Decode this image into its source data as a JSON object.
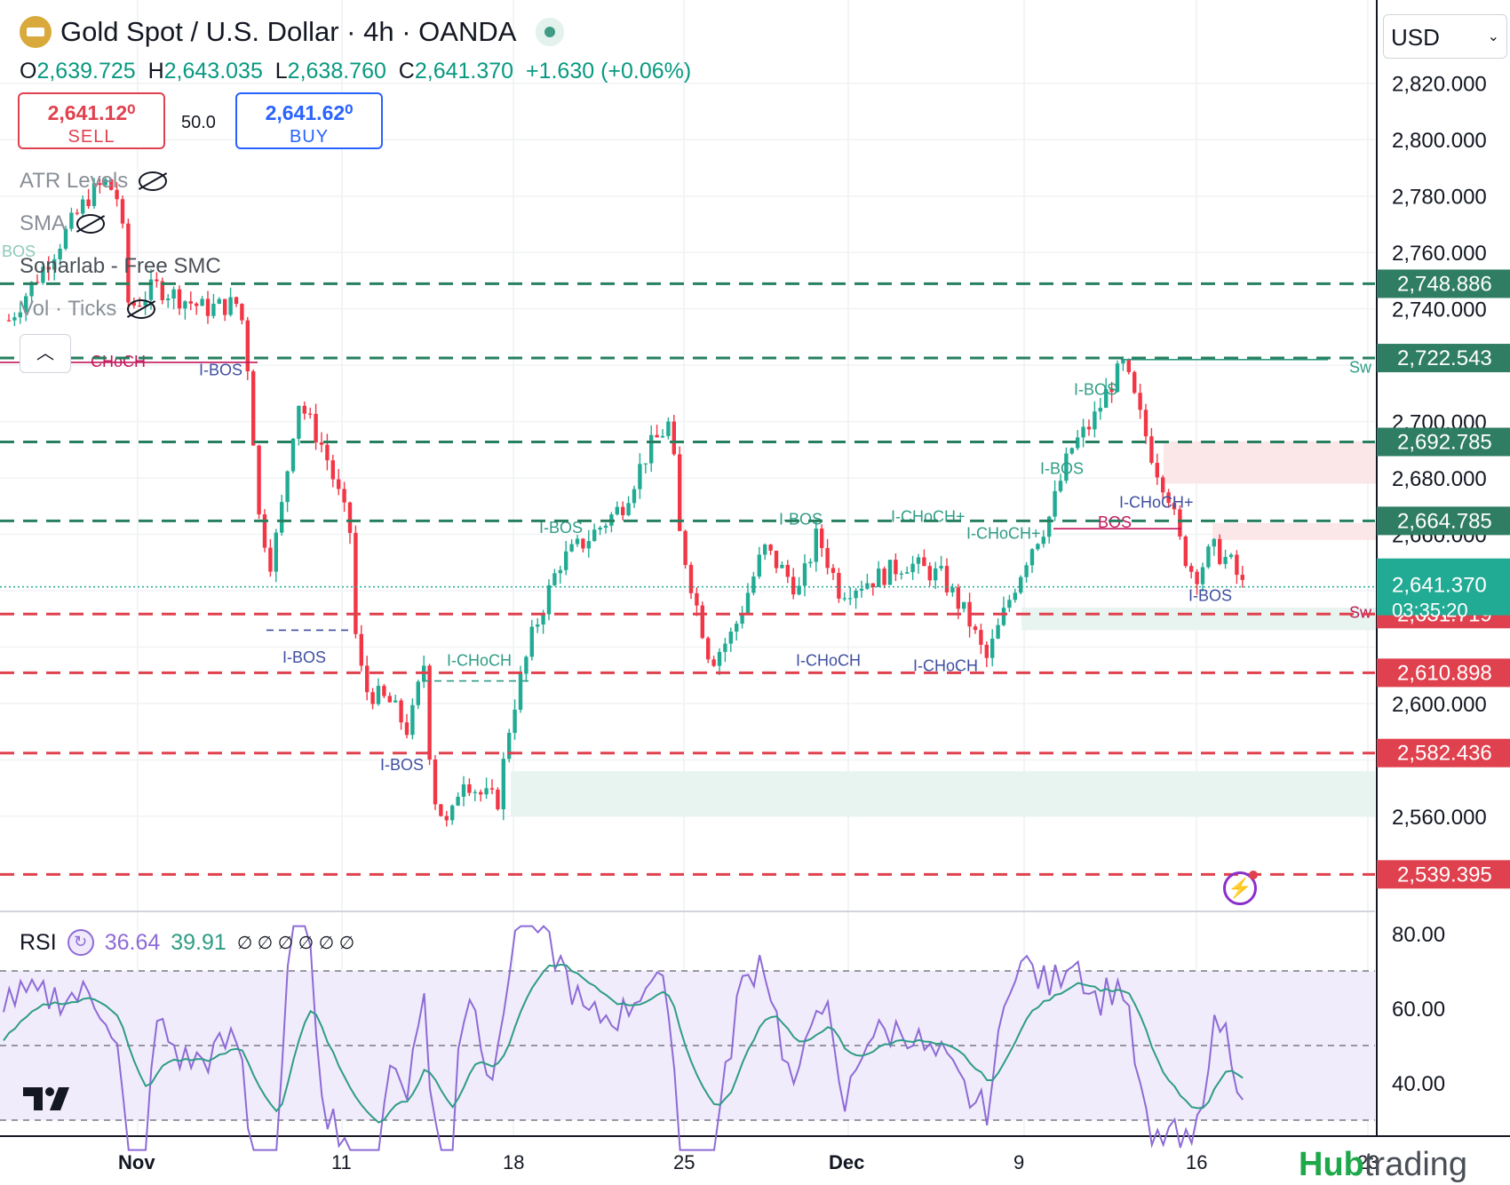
{
  "header": {
    "title": "Gold Spot / U.S. Dollar · 4h · OANDA",
    "ohlc": {
      "o_label": "O",
      "o": "2,639.725",
      "h_label": "H",
      "h": "2,643.035",
      "l_label": "L",
      "l": "2,638.760",
      "c_label": "C",
      "c": "2,641.370",
      "change": "+1.630 (+0.06%)"
    },
    "sell_price": "2,641.12⁰",
    "sell_label": "SELL",
    "spread": "50.0",
    "buy_price": "2,641.62⁰",
    "buy_label": "BUY"
  },
  "indicators": {
    "atr": "ATR Levels",
    "sma": "SMA",
    "smc": "Sonarlab - Free SMC",
    "vol": "Vol · Ticks"
  },
  "currency": "USD",
  "rsi": {
    "name": "RSI",
    "v1": "36.64",
    "v2": "39.91",
    "extra": "∅ ∅ ∅ ∅ ∅ ∅"
  },
  "brand": {
    "a": "Hub",
    "b": "trading"
  },
  "colors": {
    "up": "#22ab94",
    "down": "#f23645",
    "green_level": "#26805f",
    "red_level": "#e0414e",
    "rsi": "#8e6bd6",
    "rsi_ma": "#2f9c86"
  },
  "chart_data": {
    "type": "candlestick",
    "price_axis": {
      "ylim": [
        2525,
        2830
      ],
      "ticks": [
        "2,820.000",
        "2,800.000",
        "2,780.000",
        "2,760.000",
        "2,740.000",
        "2,700.000",
        "2,680.000",
        "2,660.000",
        "2,600.000",
        "2,560.000"
      ]
    },
    "time_axis": {
      "labels": [
        "Nov",
        "11",
        "18",
        "25",
        "Dec",
        "9",
        "16",
        "23"
      ]
    },
    "levels": {
      "green": [
        {
          "value": 2748.886,
          "label": "2,748.886"
        },
        {
          "value": 2722.543,
          "label": "2,722.543"
        },
        {
          "value": 2692.785,
          "label": "2,692.785"
        },
        {
          "value": 2664.785,
          "label": "2,664.785"
        }
      ],
      "red": [
        {
          "value": 2631.719,
          "label": "2,631.719"
        },
        {
          "value": 2610.898,
          "label": "2,610.898"
        },
        {
          "value": 2582.436,
          "label": "2,582.436"
        },
        {
          "value": 2539.395,
          "label": "2,539.395"
        }
      ]
    },
    "last_price": {
      "value": 2641.37,
      "label": "2,641.370",
      "countdown": "03:35:20"
    },
    "smc_labels": [
      "BOS",
      "CHoCH",
      "I-BOS",
      "I-CHoCH",
      "I-CHoCH+",
      "Sw"
    ],
    "rsi_axis": {
      "ylim": [
        25,
        85
      ],
      "ticks": [
        "80.00",
        "60.00",
        "40.00"
      ],
      "bands": [
        30,
        50,
        70
      ]
    }
  }
}
